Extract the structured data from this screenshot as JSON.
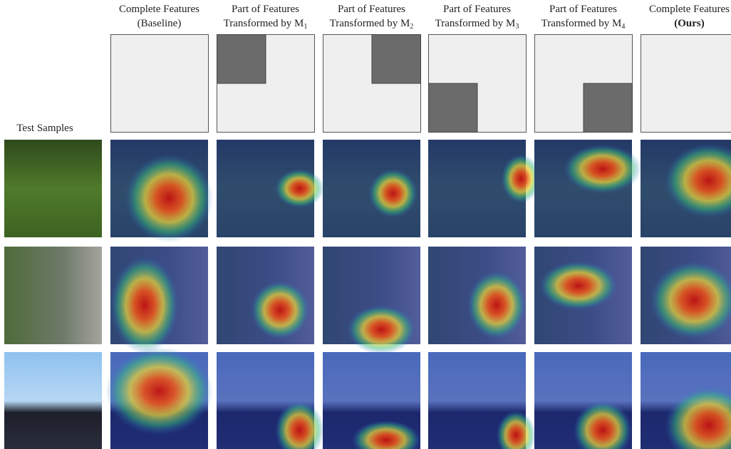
{
  "row_label": "Test Samples",
  "columns": [
    {
      "line1": "Complete Features",
      "line2": "(Baseline)"
    },
    {
      "line1": "Part of Features",
      "line2": "Transformed by M",
      "sub": "1"
    },
    {
      "line1": "Part of Features",
      "line2": "Transformed by M",
      "sub": "2"
    },
    {
      "line1": "Part of Features",
      "line2": "Transformed by M",
      "sub": "3"
    },
    {
      "line1": "Part of Features",
      "line2": "Transformed by M",
      "sub": "4"
    },
    {
      "line1": "Complete Features",
      "line2": "(Ours)"
    }
  ]
}
